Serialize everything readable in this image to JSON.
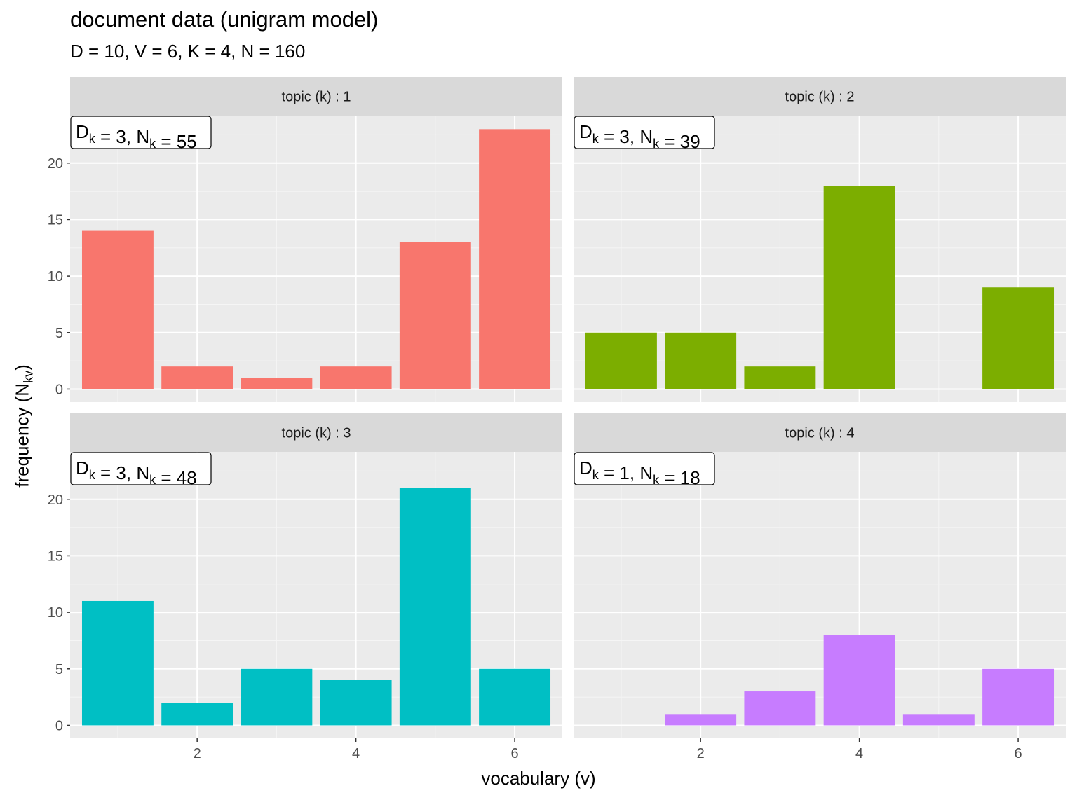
{
  "chart_data": {
    "type": "bar",
    "title": "document data (unigram model)",
    "subtitle": "D = 10, V = 6, K = 4, N = 160",
    "xlabel": "vocabulary (v)",
    "ylabel": "frequency (N",
    "ylabel_sub": "kv",
    "ylabel_tail": ")",
    "x_ticks": [
      2,
      4,
      6
    ],
    "y_ticks": [
      0,
      5,
      10,
      15,
      20
    ],
    "xlim": [
      0.4,
      6.6
    ],
    "ylim": [
      -1.15,
      24.2
    ],
    "grid": true,
    "layout": "2x2 facet",
    "panels": [
      {
        "strip": "topic (k) : 1",
        "color": "#F8766D",
        "x": [
          1,
          2,
          3,
          4,
          5,
          6
        ],
        "values": [
          14,
          2,
          1,
          2,
          13,
          23
        ],
        "annotation": {
          "D_label": "D",
          "k_sub": "k",
          "D_value": "= 3,",
          "N_label": "N",
          "N_value": "= 55"
        }
      },
      {
        "strip": "topic (k) : 2",
        "color": "#7CAE00",
        "x": [
          1,
          2,
          3,
          4,
          5,
          6
        ],
        "values": [
          5,
          5,
          2,
          18,
          0,
          9
        ],
        "annotation": {
          "D_label": "D",
          "k_sub": "k",
          "D_value": "= 3,",
          "N_label": "N",
          "N_value": "= 39"
        }
      },
      {
        "strip": "topic (k) : 3",
        "color": "#00BFC4",
        "x": [
          1,
          2,
          3,
          4,
          5,
          6
        ],
        "values": [
          11,
          2,
          5,
          4,
          21,
          5
        ],
        "annotation": {
          "D_label": "D",
          "k_sub": "k",
          "D_value": "= 3,",
          "N_label": "N",
          "N_value": "= 48"
        }
      },
      {
        "strip": "topic (k) : 4",
        "color": "#C77CFF",
        "x": [
          1,
          2,
          3,
          4,
          5,
          6
        ],
        "values": [
          0,
          1,
          3,
          8,
          1,
          5
        ],
        "annotation": {
          "D_label": "D",
          "k_sub": "k",
          "D_value": "= 1,",
          "N_label": "N",
          "N_value": "= 18"
        }
      }
    ]
  }
}
